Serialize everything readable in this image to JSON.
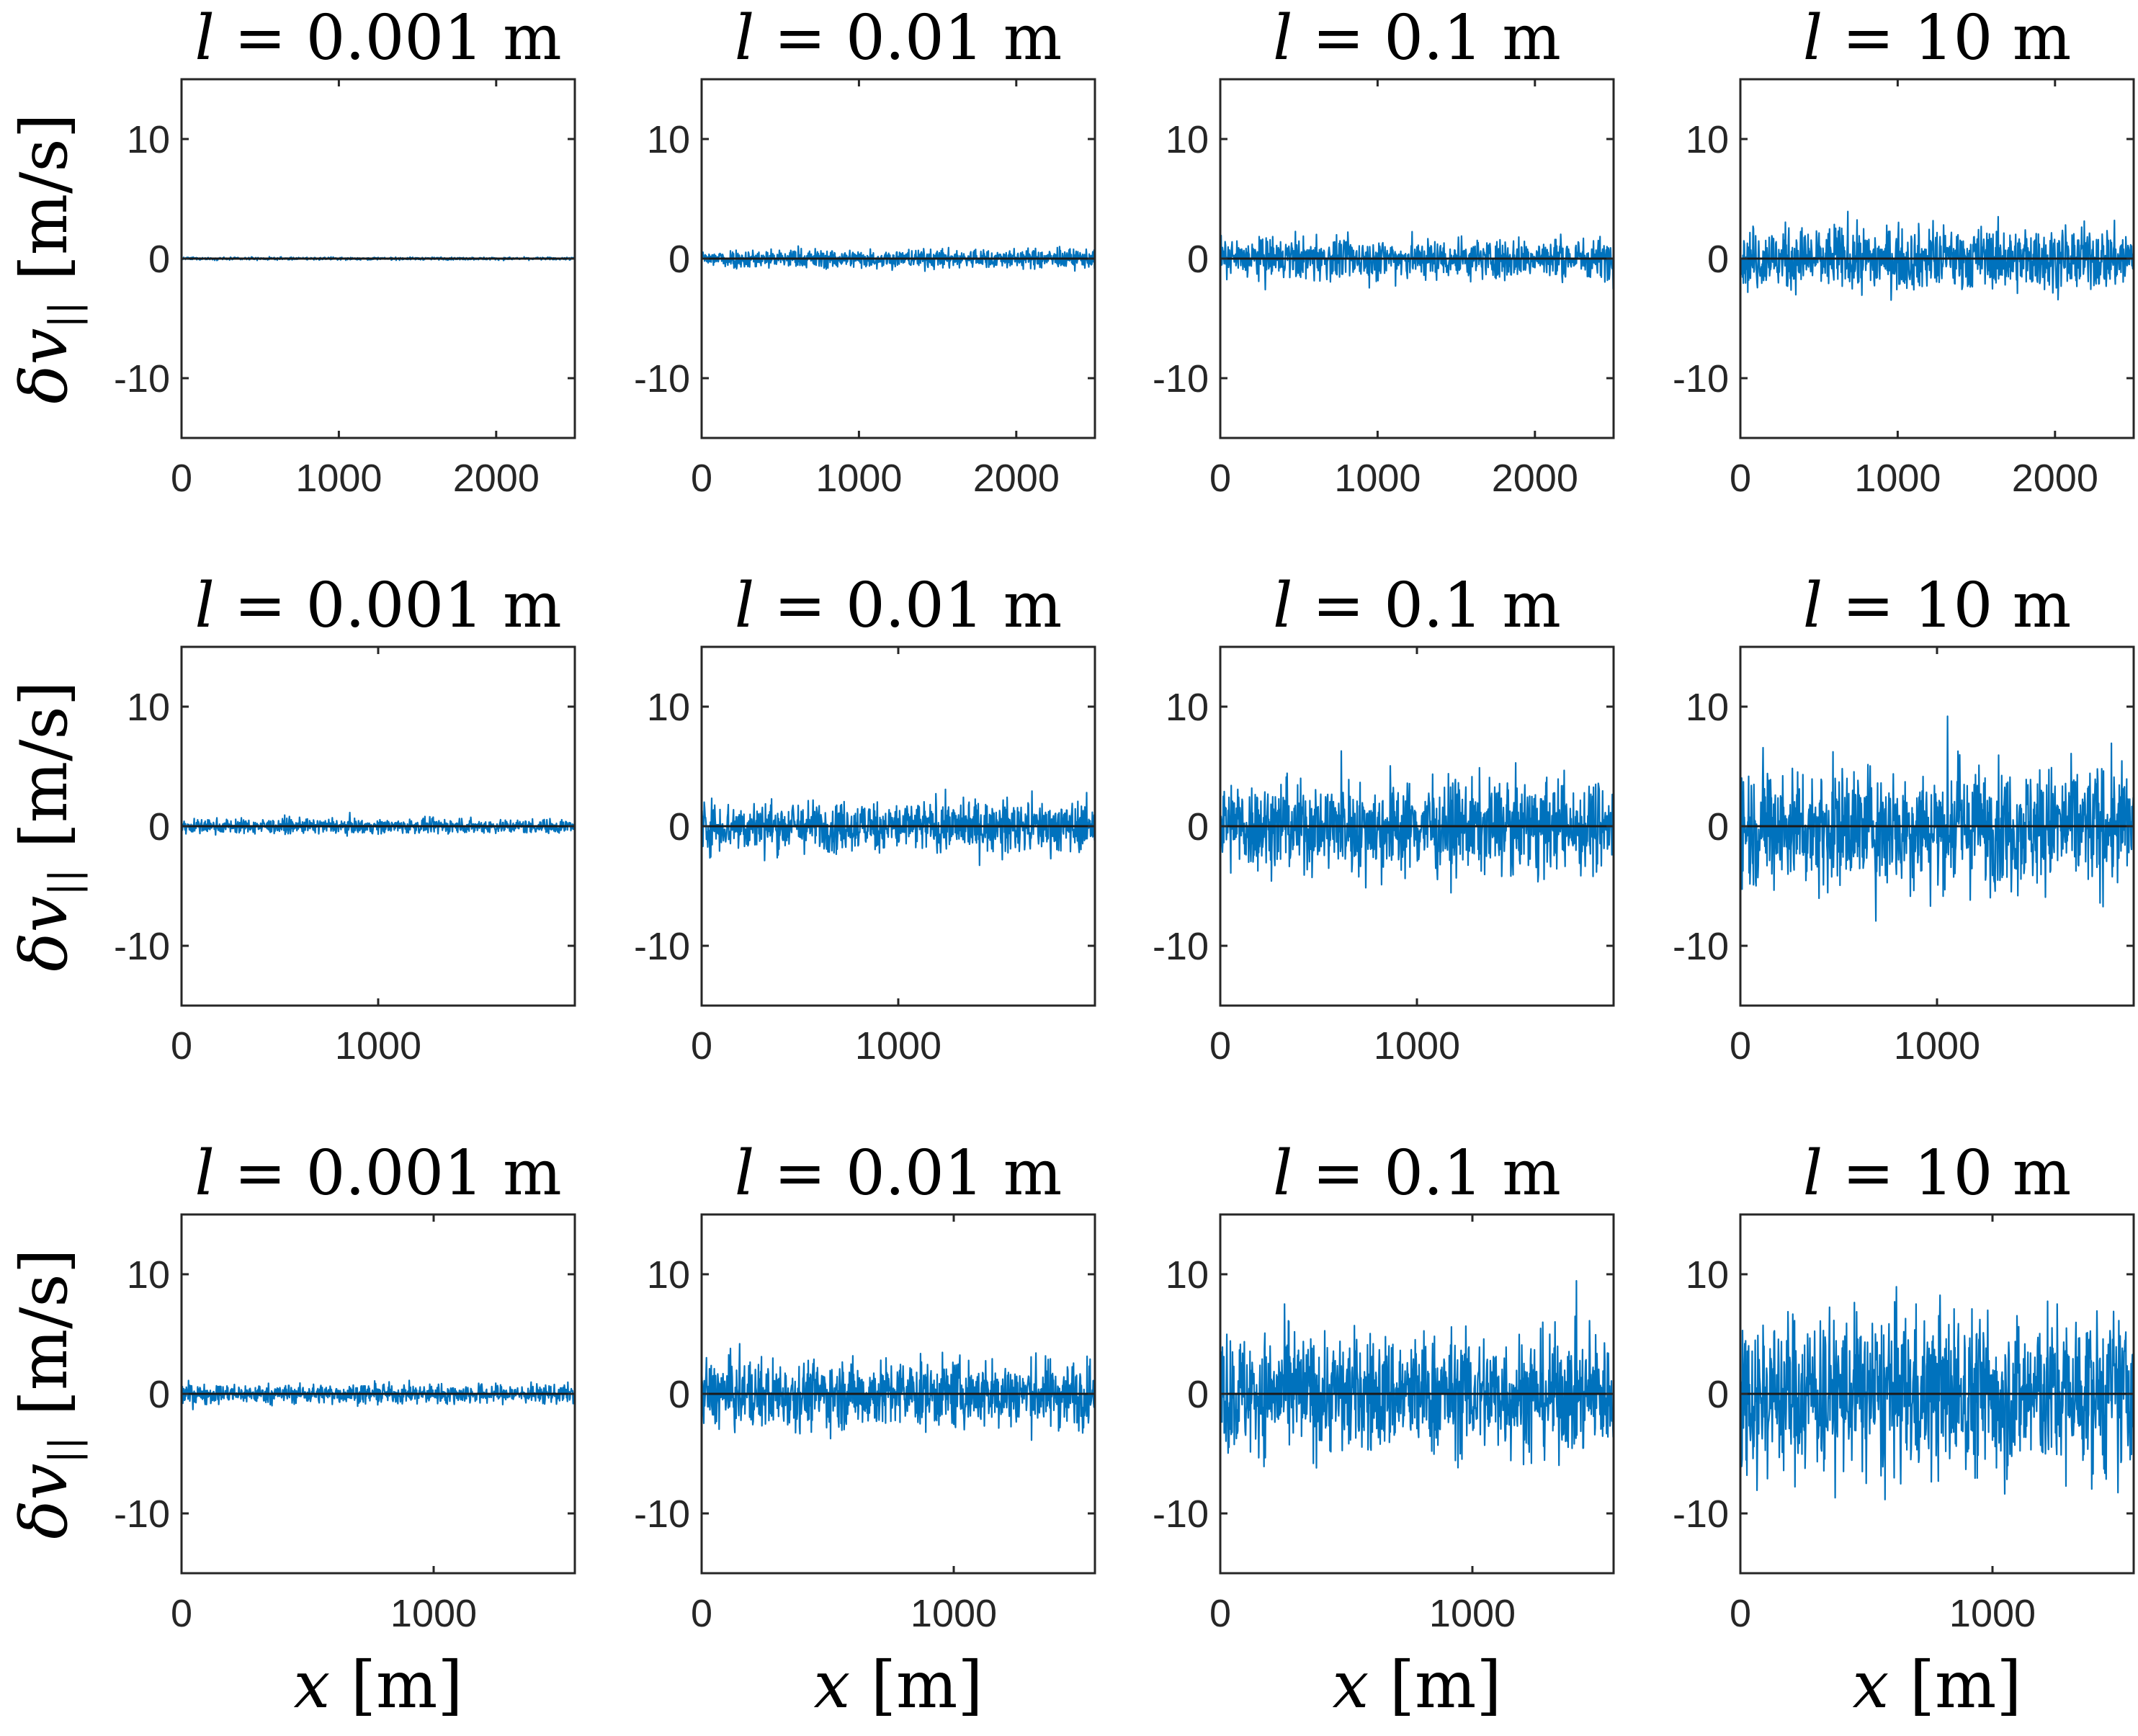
{
  "chart_data": {
    "type": "line",
    "layout": "3 rows x 4 columns",
    "ylabel": "δv_||  [m/s]",
    "xlabel": "x  [m]",
    "ylim": [
      -15,
      15
    ],
    "yticks": [
      -10,
      0,
      10
    ],
    "grid": false,
    "color": "#0072bd",
    "rows": [
      {
        "xlim": [
          0,
          2500
        ],
        "xticks": [
          0,
          1000,
          2000
        ],
        "panels": [
          {
            "title_var": "l",
            "title_val": "0.001 m",
            "amplitude": 0.22
          },
          {
            "title_var": "l",
            "title_val": "0.01 m",
            "amplitude": 1.6
          },
          {
            "title_var": "l",
            "title_val": "0.1 m",
            "amplitude": 3.4
          },
          {
            "title_var": "l",
            "title_val": "10 m",
            "amplitude": 5.2
          }
        ]
      },
      {
        "xlim": [
          0,
          2000
        ],
        "xticks": [
          0,
          1000
        ],
        "panels": [
          {
            "title_var": "l",
            "title_val": "0.001 m",
            "amplitude": 1.2
          },
          {
            "title_var": "l",
            "title_val": "0.01 m",
            "amplitude": 4.2
          },
          {
            "title_var": "l",
            "title_val": "0.1 m",
            "amplitude": 7.5
          },
          {
            "title_var": "l",
            "title_val": "10 m",
            "amplitude": 10.0
          }
        ]
      },
      {
        "xlim": [
          0,
          1560
        ],
        "xticks": [
          0,
          1000
        ],
        "panels": [
          {
            "title_var": "l",
            "title_val": "0.001 m",
            "amplitude": 1.6
          },
          {
            "title_var": "l",
            "title_val": "0.01 m",
            "amplitude": 5.7
          },
          {
            "title_var": "l",
            "title_val": "0.1 m",
            "amplitude": 10.0
          },
          {
            "title_var": "l",
            "title_val": "10 m",
            "amplitude": 13.5
          }
        ]
      }
    ]
  }
}
